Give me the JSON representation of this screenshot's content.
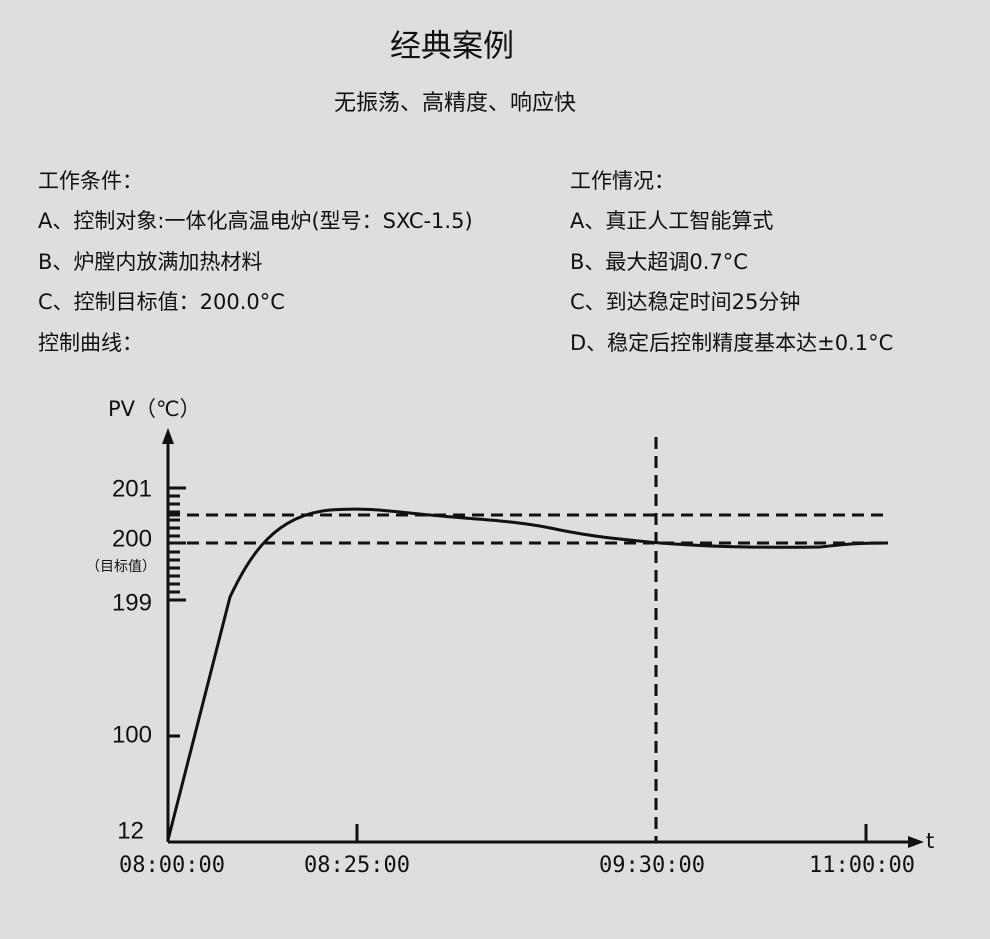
{
  "header": {
    "title": "经典案例",
    "subtitle": "无振荡、高精度、响应快"
  },
  "left": {
    "heading": "工作条件：",
    "items": [
      "A、控制对象:一体化高温电炉(型号：SXC-1.5)",
      "B、炉膛内放满加热材料",
      "C、控制目标值：200.0°C"
    ],
    "footer": "控制曲线："
  },
  "right": {
    "heading": "工作情况：",
    "items": [
      "A、真正人工智能算式",
      "B、最大超调0.7°C",
      "C、到达稳定时间25分钟",
      "D、稳定后控制精度基本达±0.1°C"
    ]
  },
  "diagram": {
    "y_axis_label": "PV（℃）",
    "x_axis_label": "t",
    "y_ticks": [
      "201",
      "200",
      "199",
      "100",
      "12"
    ],
    "setpoint_note": "（目标值）",
    "x_ticks": [
      "08:00:00",
      "08:25:00",
      "09:30:00",
      "11:00:00"
    ]
  }
}
